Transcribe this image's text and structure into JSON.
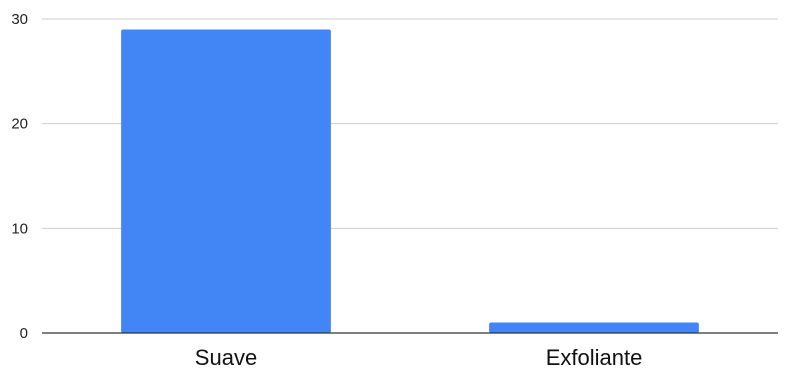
{
  "chart_data": {
    "type": "bar",
    "categories": [
      "Suave",
      "Exfoliante"
    ],
    "values": [
      29,
      1
    ],
    "title": "",
    "xlabel": "",
    "ylabel": "",
    "ylim": [
      0,
      30
    ],
    "yticks": [
      0,
      10,
      20,
      30
    ],
    "grid": true,
    "legend": "none",
    "colors": {
      "bar": "#4285f4",
      "gridline": "#cccccc",
      "baseline": "#333333"
    }
  }
}
